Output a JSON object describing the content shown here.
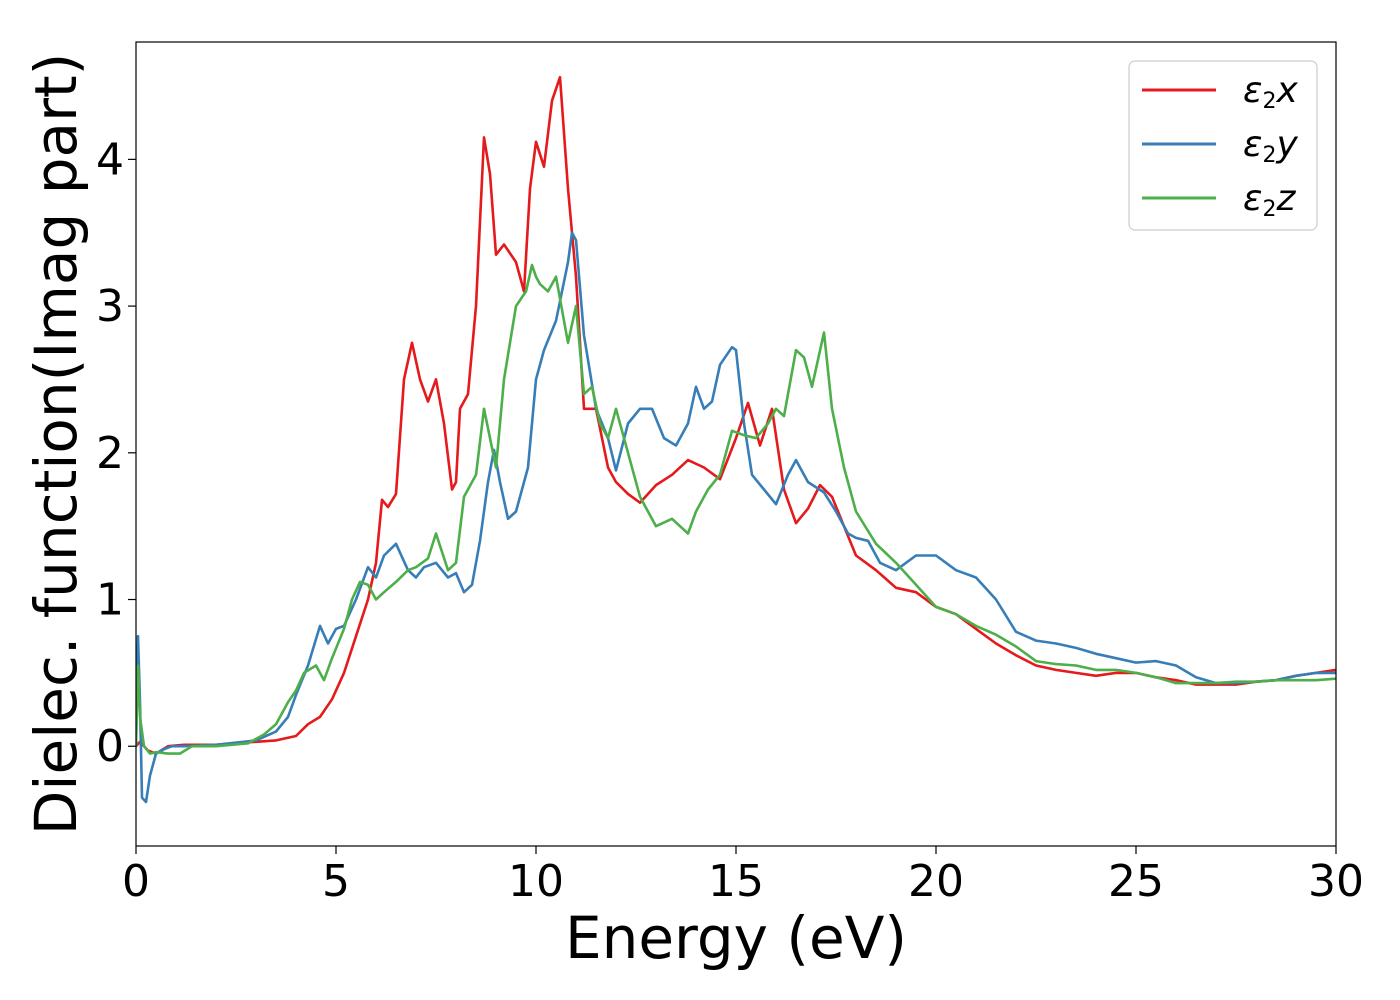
{
  "chart_data": {
    "type": "line",
    "title": "",
    "xlabel": "Energy (eV)",
    "ylabel": "Dielec. function(Imag part)",
    "xlim": [
      0,
      30
    ],
    "ylim": [
      -0.68,
      4.8
    ],
    "xticks": [
      0,
      5,
      10,
      15,
      20,
      25,
      30
    ],
    "yticks": [
      0,
      1,
      2,
      3,
      4
    ],
    "grid": false,
    "legend_position": "top-right",
    "series": [
      {
        "name": "ε2x",
        "legend_symbol": "ε",
        "legend_sub": "2",
        "legend_var": "x",
        "color": "#e41a1c",
        "x": [
          0,
          0.1,
          0.3,
          0.5,
          0.8,
          1.2,
          2.0,
          3.0,
          3.5,
          4.0,
          4.3,
          4.6,
          4.9,
          5.2,
          5.5,
          5.8,
          6.0,
          6.15,
          6.3,
          6.5,
          6.7,
          6.9,
          7.1,
          7.3,
          7.5,
          7.7,
          7.9,
          8.0,
          8.1,
          8.3,
          8.5,
          8.7,
          8.85,
          9.0,
          9.2,
          9.5,
          9.7,
          9.85,
          10.0,
          10.2,
          10.4,
          10.6,
          10.8,
          11.0,
          11.2,
          11.5,
          11.8,
          12.0,
          12.3,
          12.6,
          13.0,
          13.4,
          13.8,
          14.2,
          14.6,
          15.0,
          15.3,
          15.6,
          15.9,
          16.2,
          16.5,
          16.8,
          17.1,
          17.4,
          17.7,
          18.0,
          18.5,
          19.0,
          19.5,
          20.0,
          20.5,
          21.0,
          21.5,
          22.0,
          22.5,
          23.0,
          23.5,
          24.0,
          24.5,
          25.0,
          25.5,
          26.0,
          26.5,
          27.0,
          27.5,
          28.0,
          28.5,
          29.0,
          29.5,
          30.0
        ],
        "values": [
          0.0,
          0.03,
          -0.03,
          -0.05,
          0.0,
          0.01,
          0.01,
          0.03,
          0.04,
          0.07,
          0.15,
          0.2,
          0.32,
          0.5,
          0.75,
          1.0,
          1.25,
          1.68,
          1.63,
          1.72,
          2.5,
          2.75,
          2.5,
          2.35,
          2.5,
          2.2,
          1.75,
          1.8,
          2.3,
          2.4,
          3.0,
          4.15,
          3.9,
          3.35,
          3.42,
          3.3,
          3.1,
          3.8,
          4.12,
          3.95,
          4.4,
          4.56,
          3.8,
          3.2,
          2.3,
          2.3,
          1.9,
          1.8,
          1.72,
          1.66,
          1.78,
          1.85,
          1.95,
          1.9,
          1.82,
          2.1,
          2.34,
          2.05,
          2.3,
          1.75,
          1.52,
          1.62,
          1.78,
          1.7,
          1.5,
          1.3,
          1.2,
          1.08,
          1.05,
          0.95,
          0.9,
          0.8,
          0.7,
          0.62,
          0.55,
          0.52,
          0.5,
          0.48,
          0.5,
          0.5,
          0.47,
          0.45,
          0.42,
          0.42,
          0.42,
          0.44,
          0.45,
          0.48,
          0.5,
          0.52
        ]
      },
      {
        "name": "ε2y",
        "legend_symbol": "ε",
        "legend_sub": "2",
        "legend_var": "y",
        "color": "#377eb8",
        "x": [
          0,
          0.05,
          0.1,
          0.15,
          0.25,
          0.35,
          0.5,
          0.7,
          0.9,
          1.2,
          2.0,
          3.0,
          3.5,
          3.8,
          4.0,
          4.3,
          4.6,
          4.8,
          5.0,
          5.2,
          5.5,
          5.8,
          6.0,
          6.2,
          6.5,
          6.8,
          7.0,
          7.2,
          7.5,
          7.8,
          8.0,
          8.2,
          8.4,
          8.6,
          8.8,
          8.95,
          9.1,
          9.3,
          9.5,
          9.8,
          10.0,
          10.2,
          10.5,
          10.8,
          10.9,
          11.0,
          11.2,
          11.5,
          11.8,
          12.0,
          12.3,
          12.6,
          12.9,
          13.2,
          13.5,
          13.8,
          14.0,
          14.2,
          14.4,
          14.6,
          14.9,
          15.0,
          15.2,
          15.4,
          15.7,
          16.0,
          16.3,
          16.5,
          16.8,
          17.2,
          17.5,
          17.8,
          18.0,
          18.3,
          18.6,
          19.0,
          19.5,
          20.0,
          20.5,
          21.0,
          21.5,
          22.0,
          22.5,
          23.0,
          23.5,
          24.0,
          24.5,
          25.0,
          25.5,
          26.0,
          26.5,
          27.0,
          27.5,
          28.0,
          28.5,
          29.0,
          29.5,
          30.0
        ],
        "values": [
          0.0,
          0.75,
          0.3,
          -0.35,
          -0.38,
          -0.2,
          -0.05,
          -0.02,
          0.0,
          0.0,
          0.01,
          0.04,
          0.1,
          0.2,
          0.35,
          0.55,
          0.82,
          0.7,
          0.8,
          0.82,
          1.0,
          1.22,
          1.15,
          1.3,
          1.38,
          1.2,
          1.15,
          1.22,
          1.25,
          1.15,
          1.18,
          1.05,
          1.1,
          1.4,
          1.8,
          2.02,
          1.8,
          1.55,
          1.6,
          1.9,
          2.5,
          2.7,
          2.9,
          3.3,
          3.5,
          3.45,
          2.8,
          2.3,
          2.1,
          1.88,
          2.2,
          2.3,
          2.3,
          2.1,
          2.05,
          2.2,
          2.45,
          2.3,
          2.35,
          2.6,
          2.72,
          2.7,
          2.2,
          1.85,
          1.75,
          1.65,
          1.85,
          1.95,
          1.8,
          1.73,
          1.6,
          1.45,
          1.42,
          1.4,
          1.25,
          1.2,
          1.3,
          1.3,
          1.2,
          1.15,
          1.0,
          0.78,
          0.72,
          0.7,
          0.67,
          0.63,
          0.6,
          0.57,
          0.58,
          0.55,
          0.47,
          0.43,
          0.43,
          0.44,
          0.45,
          0.48,
          0.5,
          0.5
        ]
      },
      {
        "name": "ε2z",
        "legend_symbol": "ε",
        "legend_sub": "2",
        "legend_var": "z",
        "color": "#4daf4a",
        "x": [
          0,
          0.05,
          0.1,
          0.2,
          0.35,
          0.5,
          0.8,
          1.1,
          1.4,
          2.0,
          2.8,
          3.2,
          3.5,
          3.8,
          4.0,
          4.2,
          4.5,
          4.7,
          4.9,
          5.2,
          5.4,
          5.6,
          5.8,
          6.0,
          6.2,
          6.5,
          6.8,
          7.0,
          7.3,
          7.5,
          7.8,
          8.0,
          8.2,
          8.5,
          8.7,
          8.85,
          9.0,
          9.2,
          9.5,
          9.75,
          9.9,
          10.0,
          10.1,
          10.3,
          10.5,
          10.7,
          10.8,
          11.0,
          11.2,
          11.4,
          11.6,
          11.8,
          12.0,
          12.3,
          12.6,
          13.0,
          13.4,
          13.6,
          13.8,
          14.0,
          14.3,
          14.6,
          14.9,
          15.2,
          15.5,
          15.8,
          16.0,
          16.2,
          16.5,
          16.7,
          16.9,
          17.2,
          17.4,
          17.7,
          18.0,
          18.5,
          19.0,
          19.5,
          20.0,
          20.5,
          21.0,
          21.5,
          22.0,
          22.5,
          23.0,
          23.5,
          24.0,
          24.5,
          25.0,
          25.5,
          26.0,
          26.5,
          27.0,
          27.5,
          28.0,
          28.5,
          29.0,
          29.5,
          30.0
        ],
        "values": [
          0.0,
          0.55,
          0.2,
          0.0,
          -0.05,
          -0.04,
          -0.05,
          -0.05,
          0.0,
          0.0,
          0.02,
          0.08,
          0.15,
          0.3,
          0.38,
          0.5,
          0.55,
          0.45,
          0.6,
          0.8,
          1.0,
          1.12,
          1.1,
          1.0,
          1.05,
          1.12,
          1.2,
          1.22,
          1.28,
          1.45,
          1.2,
          1.25,
          1.7,
          1.85,
          2.3,
          2.1,
          1.9,
          2.5,
          3.0,
          3.1,
          3.28,
          3.2,
          3.15,
          3.1,
          3.2,
          2.9,
          2.75,
          3.0,
          2.4,
          2.45,
          2.2,
          2.1,
          2.3,
          2.0,
          1.7,
          1.5,
          1.55,
          1.5,
          1.45,
          1.6,
          1.75,
          1.85,
          2.15,
          2.12,
          2.1,
          2.2,
          2.3,
          2.25,
          2.7,
          2.65,
          2.45,
          2.82,
          2.3,
          1.9,
          1.6,
          1.38,
          1.25,
          1.1,
          0.95,
          0.9,
          0.82,
          0.76,
          0.68,
          0.58,
          0.56,
          0.55,
          0.52,
          0.52,
          0.5,
          0.47,
          0.43,
          0.43,
          0.43,
          0.44,
          0.44,
          0.45,
          0.45,
          0.45,
          0.46
        ]
      }
    ]
  }
}
